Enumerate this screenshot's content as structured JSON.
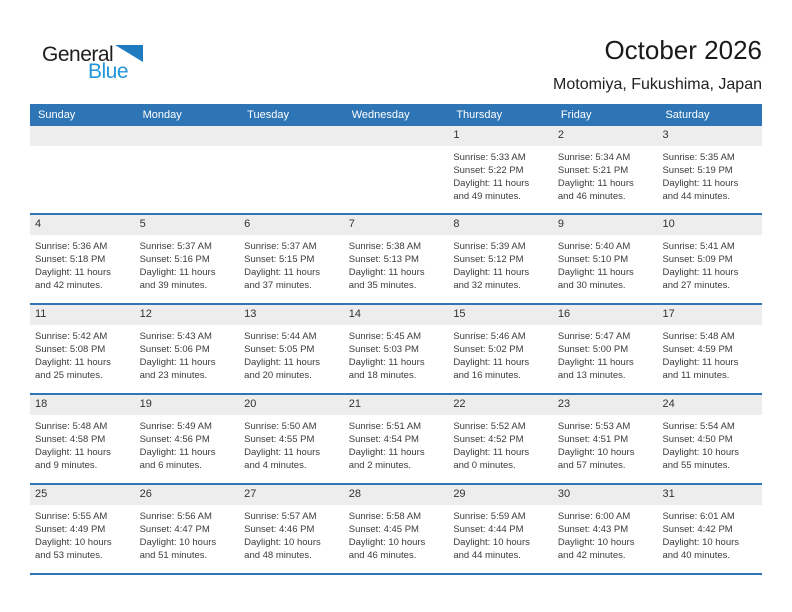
{
  "logo": {
    "part1": "General",
    "part2": "Blue",
    "triangle_icon": "blue-right-triangle"
  },
  "header": {
    "title": "October 2026",
    "subtitle": "Motomiya, Fukushima, Japan"
  },
  "colors": {
    "header_blue": "#2E75B6",
    "row_line_blue": "#2E75B6",
    "day_band_gray": "#EDEDED",
    "logo_triangle_blue": "#1F7BC0",
    "logo_blue_text": "#2196D9"
  },
  "weekdays": [
    "Sunday",
    "Monday",
    "Tuesday",
    "Wednesday",
    "Thursday",
    "Friday",
    "Saturday"
  ],
  "weeks": [
    [
      null,
      null,
      null,
      null,
      {
        "day": "1",
        "lines": [
          "Sunrise: 5:33 AM",
          "Sunset: 5:22 PM",
          "Daylight: 11 hours",
          "and 49 minutes."
        ]
      },
      {
        "day": "2",
        "lines": [
          "Sunrise: 5:34 AM",
          "Sunset: 5:21 PM",
          "Daylight: 11 hours",
          "and 46 minutes."
        ]
      },
      {
        "day": "3",
        "lines": [
          "Sunrise: 5:35 AM",
          "Sunset: 5:19 PM",
          "Daylight: 11 hours",
          "and 44 minutes."
        ]
      }
    ],
    [
      {
        "day": "4",
        "lines": [
          "Sunrise: 5:36 AM",
          "Sunset: 5:18 PM",
          "Daylight: 11 hours",
          "and 42 minutes."
        ]
      },
      {
        "day": "5",
        "lines": [
          "Sunrise: 5:37 AM",
          "Sunset: 5:16 PM",
          "Daylight: 11 hours",
          "and 39 minutes."
        ]
      },
      {
        "day": "6",
        "lines": [
          "Sunrise: 5:37 AM",
          "Sunset: 5:15 PM",
          "Daylight: 11 hours",
          "and 37 minutes."
        ]
      },
      {
        "day": "7",
        "lines": [
          "Sunrise: 5:38 AM",
          "Sunset: 5:13 PM",
          "Daylight: 11 hours",
          "and 35 minutes."
        ]
      },
      {
        "day": "8",
        "lines": [
          "Sunrise: 5:39 AM",
          "Sunset: 5:12 PM",
          "Daylight: 11 hours",
          "and 32 minutes."
        ]
      },
      {
        "day": "9",
        "lines": [
          "Sunrise: 5:40 AM",
          "Sunset: 5:10 PM",
          "Daylight: 11 hours",
          "and 30 minutes."
        ]
      },
      {
        "day": "10",
        "lines": [
          "Sunrise: 5:41 AM",
          "Sunset: 5:09 PM",
          "Daylight: 11 hours",
          "and 27 minutes."
        ]
      }
    ],
    [
      {
        "day": "11",
        "lines": [
          "Sunrise: 5:42 AM",
          "Sunset: 5:08 PM",
          "Daylight: 11 hours",
          "and 25 minutes."
        ]
      },
      {
        "day": "12",
        "lines": [
          "Sunrise: 5:43 AM",
          "Sunset: 5:06 PM",
          "Daylight: 11 hours",
          "and 23 minutes."
        ]
      },
      {
        "day": "13",
        "lines": [
          "Sunrise: 5:44 AM",
          "Sunset: 5:05 PM",
          "Daylight: 11 hours",
          "and 20 minutes."
        ]
      },
      {
        "day": "14",
        "lines": [
          "Sunrise: 5:45 AM",
          "Sunset: 5:03 PM",
          "Daylight: 11 hours",
          "and 18 minutes."
        ]
      },
      {
        "day": "15",
        "lines": [
          "Sunrise: 5:46 AM",
          "Sunset: 5:02 PM",
          "Daylight: 11 hours",
          "and 16 minutes."
        ]
      },
      {
        "day": "16",
        "lines": [
          "Sunrise: 5:47 AM",
          "Sunset: 5:00 PM",
          "Daylight: 11 hours",
          "and 13 minutes."
        ]
      },
      {
        "day": "17",
        "lines": [
          "Sunrise: 5:48 AM",
          "Sunset: 4:59 PM",
          "Daylight: 11 hours",
          "and 11 minutes."
        ]
      }
    ],
    [
      {
        "day": "18",
        "lines": [
          "Sunrise: 5:48 AM",
          "Sunset: 4:58 PM",
          "Daylight: 11 hours",
          "and 9 minutes."
        ]
      },
      {
        "day": "19",
        "lines": [
          "Sunrise: 5:49 AM",
          "Sunset: 4:56 PM",
          "Daylight: 11 hours",
          "and 6 minutes."
        ]
      },
      {
        "day": "20",
        "lines": [
          "Sunrise: 5:50 AM",
          "Sunset: 4:55 PM",
          "Daylight: 11 hours",
          "and 4 minutes."
        ]
      },
      {
        "day": "21",
        "lines": [
          "Sunrise: 5:51 AM",
          "Sunset: 4:54 PM",
          "Daylight: 11 hours",
          "and 2 minutes."
        ]
      },
      {
        "day": "22",
        "lines": [
          "Sunrise: 5:52 AM",
          "Sunset: 4:52 PM",
          "Daylight: 11 hours",
          "and 0 minutes."
        ]
      },
      {
        "day": "23",
        "lines": [
          "Sunrise: 5:53 AM",
          "Sunset: 4:51 PM",
          "Daylight: 10 hours",
          "and 57 minutes."
        ]
      },
      {
        "day": "24",
        "lines": [
          "Sunrise: 5:54 AM",
          "Sunset: 4:50 PM",
          "Daylight: 10 hours",
          "and 55 minutes."
        ]
      }
    ],
    [
      {
        "day": "25",
        "lines": [
          "Sunrise: 5:55 AM",
          "Sunset: 4:49 PM",
          "Daylight: 10 hours",
          "and 53 minutes."
        ]
      },
      {
        "day": "26",
        "lines": [
          "Sunrise: 5:56 AM",
          "Sunset: 4:47 PM",
          "Daylight: 10 hours",
          "and 51 minutes."
        ]
      },
      {
        "day": "27",
        "lines": [
          "Sunrise: 5:57 AM",
          "Sunset: 4:46 PM",
          "Daylight: 10 hours",
          "and 48 minutes."
        ]
      },
      {
        "day": "28",
        "lines": [
          "Sunrise: 5:58 AM",
          "Sunset: 4:45 PM",
          "Daylight: 10 hours",
          "and 46 minutes."
        ]
      },
      {
        "day": "29",
        "lines": [
          "Sunrise: 5:59 AM",
          "Sunset: 4:44 PM",
          "Daylight: 10 hours",
          "and 44 minutes."
        ]
      },
      {
        "day": "30",
        "lines": [
          "Sunrise: 6:00 AM",
          "Sunset: 4:43 PM",
          "Daylight: 10 hours",
          "and 42 minutes."
        ]
      },
      {
        "day": "31",
        "lines": [
          "Sunrise: 6:01 AM",
          "Sunset: 4:42 PM",
          "Daylight: 10 hours",
          "and 40 minutes."
        ]
      }
    ]
  ]
}
